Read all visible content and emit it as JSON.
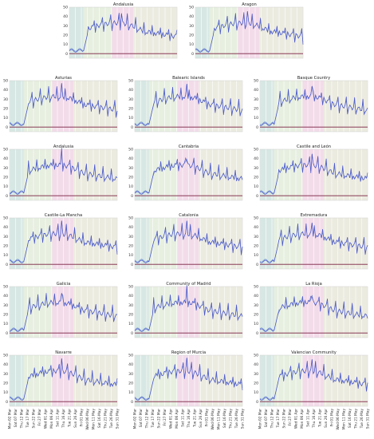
{
  "chart_data": [
    {
      "type": "line",
      "title": "Andalusia",
      "ylim": [
        -5,
        50
      ],
      "yticks": [
        0,
        10,
        20,
        30,
        40,
        50
      ]
    },
    {
      "type": "line",
      "title": "Aragon",
      "ylim": [
        -5,
        50
      ],
      "yticks": [
        0,
        10,
        20,
        30,
        40,
        50
      ]
    },
    {
      "type": "line",
      "title": "Asturias",
      "ylim": [
        -5,
        50
      ],
      "yticks": [
        0,
        10,
        20,
        30,
        40,
        50
      ]
    },
    {
      "type": "line",
      "title": "Balearic Islands",
      "ylim": [
        -5,
        50
      ],
      "yticks": [
        0,
        10,
        20,
        30,
        40,
        50
      ]
    },
    {
      "type": "line",
      "title": "Basque Country",
      "ylim": [
        -5,
        50
      ],
      "yticks": [
        0,
        10,
        20,
        30,
        40,
        50
      ]
    },
    {
      "type": "line",
      "title": "Andalusia",
      "ylim": [
        -5,
        50
      ],
      "yticks": [
        0,
        10,
        20,
        30,
        40,
        50
      ]
    },
    {
      "type": "line",
      "title": "Cantabria",
      "ylim": [
        -5,
        50
      ],
      "yticks": [
        0,
        10,
        20,
        30,
        40,
        50
      ]
    },
    {
      "type": "line",
      "title": "Castile and León",
      "ylim": [
        -5,
        50
      ],
      "yticks": [
        0,
        10,
        20,
        30,
        40,
        50
      ]
    },
    {
      "type": "line",
      "title": "Castile-La Mancha",
      "ylim": [
        -5,
        50
      ],
      "yticks": [
        0,
        10,
        20,
        30,
        40,
        50
      ]
    },
    {
      "type": "line",
      "title": "Catalonia",
      "ylim": [
        -5,
        50
      ],
      "yticks": [
        0,
        10,
        20,
        30,
        40,
        50
      ]
    },
    {
      "type": "line",
      "title": "Extremadura",
      "ylim": [
        -5,
        50
      ],
      "yticks": [
        0,
        10,
        20,
        30,
        40,
        50
      ]
    },
    {
      "type": "line",
      "title": "Galicia",
      "ylim": [
        -5,
        50
      ],
      "yticks": [
        0,
        10,
        20,
        30,
        40,
        50
      ]
    },
    {
      "type": "line",
      "title": "Community of Madrid",
      "ylim": [
        -5,
        50
      ],
      "yticks": [
        0,
        10,
        20,
        30,
        40,
        50
      ]
    },
    {
      "type": "line",
      "title": "La Rioja",
      "ylim": [
        -5,
        50
      ],
      "yticks": [
        0,
        10,
        20,
        30,
        40,
        50
      ]
    },
    {
      "type": "line",
      "title": "Navarre",
      "ylim": [
        -5,
        50
      ],
      "yticks": [
        0,
        10,
        20,
        30,
        40,
        50
      ]
    },
    {
      "type": "line",
      "title": "Region of Murcia",
      "ylim": [
        -5,
        50
      ],
      "yticks": [
        0,
        10,
        20,
        30,
        40,
        50
      ]
    },
    {
      "type": "line",
      "title": "Valencian Community",
      "ylim": [
        -5,
        50
      ],
      "yticks": [
        0,
        10,
        20,
        30,
        40,
        50
      ]
    }
  ],
  "x_tick_labels": [
    "Mon 02 Mar",
    "Sat 07 Mar",
    "Thu 12 Mar",
    "Tue 17 Mar",
    "Sun 22 Mar",
    "Fri 27 Mar",
    "Wed 01 Apr",
    "Mon 06 Apr",
    "Sat 11 Apr",
    "Thu 16 Apr",
    "Tue 21 Apr",
    "Sun 26 Apr",
    "Fri 01 May",
    "Wed 06 May",
    "Mon 11 May",
    "Sat 16 May",
    "Thu 21 May",
    "Tue 26 May",
    "Sun 31 May"
  ],
  "colors": {
    "series": "#4a55c8",
    "series_secondary": "#6f8fd0",
    "zero_line": "#7a2040",
    "band_pre": "#d7e8e4",
    "band_early": "#e7efe0",
    "band_peak": "#f3dcea",
    "band_late": "#ecebe0",
    "grid": "#ffffff"
  }
}
